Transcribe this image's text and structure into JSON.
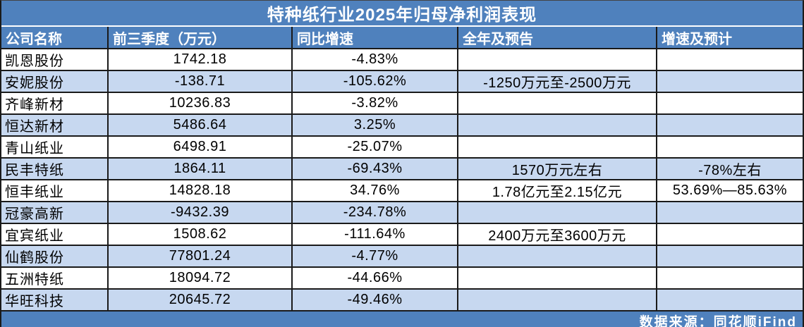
{
  "title": "特种纸行业2025年归母净利润表现",
  "columns": [
    {
      "key": "company",
      "label": "公司名称"
    },
    {
      "key": "q3_profit",
      "label": "前三季度（万元）"
    },
    {
      "key": "yoy_growth",
      "label": "同比增速"
    },
    {
      "key": "full_year_forecast",
      "label": "全年及预告"
    },
    {
      "key": "forecast_growth",
      "label": "增速及预计"
    }
  ],
  "rows": [
    {
      "company": "凯恩股份",
      "q3_profit": "1742.18",
      "yoy_growth": "-4.83%",
      "full_year_forecast": "",
      "forecast_growth": ""
    },
    {
      "company": "安妮股份",
      "q3_profit": "-138.71",
      "yoy_growth": "-105.62%",
      "full_year_forecast": "-1250万元至-2500万元",
      "forecast_growth": ""
    },
    {
      "company": "齐峰新材",
      "q3_profit": "10236.83",
      "yoy_growth": "-3.82%",
      "full_year_forecast": "",
      "forecast_growth": ""
    },
    {
      "company": "恒达新材",
      "q3_profit": "5486.64",
      "yoy_growth": "3.25%",
      "full_year_forecast": "",
      "forecast_growth": ""
    },
    {
      "company": "青山纸业",
      "q3_profit": "6498.91",
      "yoy_growth": "-25.07%",
      "full_year_forecast": "",
      "forecast_growth": ""
    },
    {
      "company": "民丰特纸",
      "q3_profit": "1864.11",
      "yoy_growth": "-69.43%",
      "full_year_forecast": "1570万元左右",
      "forecast_growth": "-78%左右"
    },
    {
      "company": "恒丰纸业",
      "q3_profit": "14828.18",
      "yoy_growth": "34.76%",
      "full_year_forecast": "1.78亿元至2.15亿元",
      "forecast_growth": "53.69%—85.63%"
    },
    {
      "company": "冠豪高新",
      "q3_profit": "-9432.39",
      "yoy_growth": "-234.78%",
      "full_year_forecast": "",
      "forecast_growth": ""
    },
    {
      "company": "宜宾纸业",
      "q3_profit": "1508.62",
      "yoy_growth": "-111.64%",
      "full_year_forecast": "2400万元至3600万元",
      "forecast_growth": ""
    },
    {
      "company": "仙鹤股份",
      "q3_profit": "77801.24",
      "yoy_growth": "-4.77%",
      "full_year_forecast": "",
      "forecast_growth": ""
    },
    {
      "company": "五洲特纸",
      "q3_profit": "18094.72",
      "yoy_growth": "-44.66%",
      "full_year_forecast": "",
      "forecast_growth": ""
    },
    {
      "company": "华旺科技",
      "q3_profit": "20645.72",
      "yoy_growth": "-49.46%",
      "full_year_forecast": "",
      "forecast_growth": ""
    }
  ],
  "footer": {
    "source": "数据来源：同花顺iFind"
  },
  "colors": {
    "header_blue": "#4F81BD",
    "stripe_blue": "#C7D8F0",
    "grid_line": "#1A1A1A",
    "header_text": "#FFFFFF",
    "body_text": "#000000"
  }
}
